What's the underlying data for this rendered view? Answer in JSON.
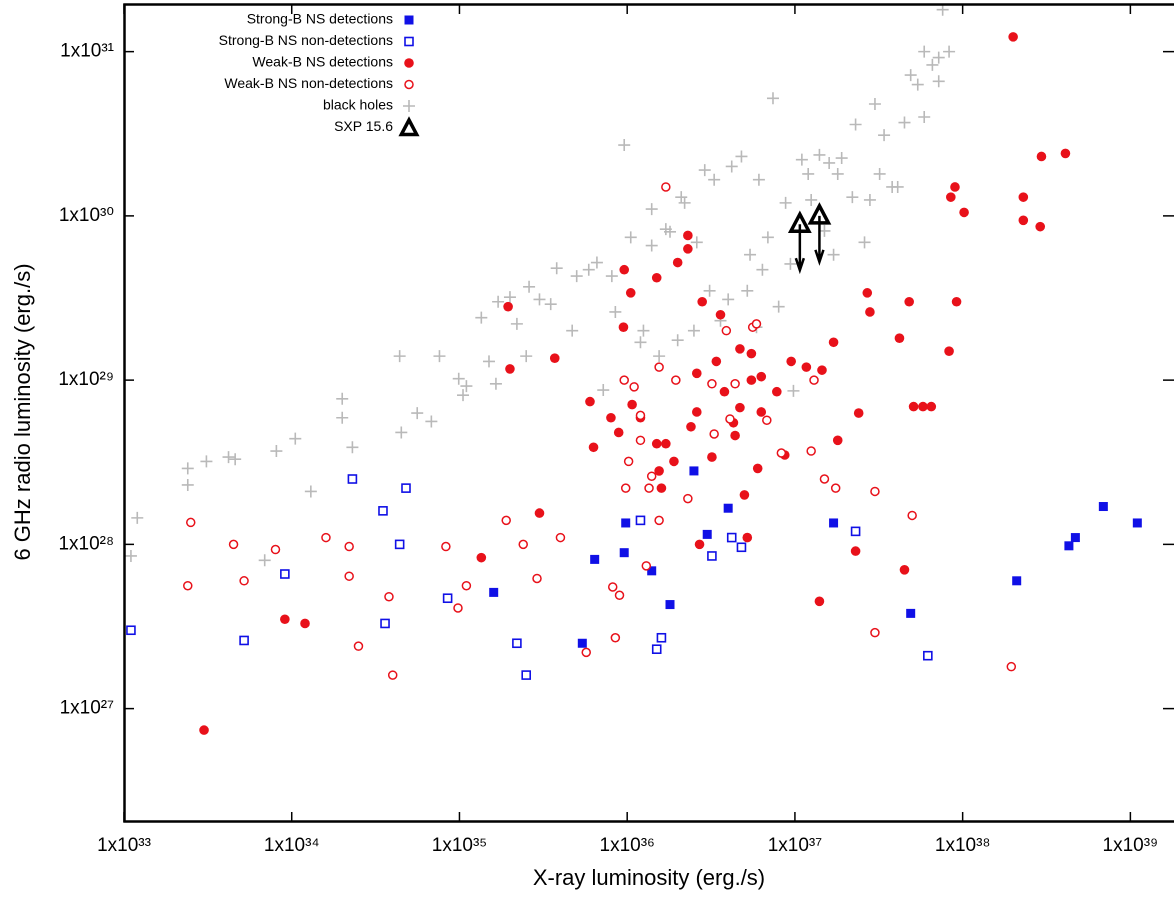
{
  "chart_data": {
    "type": "scatter",
    "x_label": "X-ray luminosity (erg./s)",
    "y_label": "6 GHz radio luminosity (erg./s)",
    "log_x": true,
    "log_y": true,
    "grid": false,
    "legend": "upper left",
    "xlim": [
      1e+33,
      1.82e+39
    ],
    "ylim": [
      2.04e+26,
      1.95e+31
    ],
    "xticks": [
      {
        "value": 1e+33,
        "label": "1x10³³"
      },
      {
        "value": 1e+34,
        "label": "1x10³⁴"
      },
      {
        "value": 1e+35,
        "label": "1x10³⁵"
      },
      {
        "value": 1e+36,
        "label": "1x10³⁶"
      },
      {
        "value": 1e+37,
        "label": "1x10³⁷"
      },
      {
        "value": 1e+38,
        "label": "1x10³⁸"
      },
      {
        "value": 1e+39,
        "label": "1x10³⁹"
      }
    ],
    "yticks": [
      {
        "value": 1e+27,
        "label": "1x10²⁷"
      },
      {
        "value": 1e+28,
        "label": "1x10²⁸"
      },
      {
        "value": 1e+29,
        "label": "1x10²⁹"
      },
      {
        "value": 1e+30,
        "label": "1x10³⁰"
      },
      {
        "value": 1e+31,
        "label": "1x10³¹"
      }
    ],
    "series": [
      {
        "name": "Strong-B NS detections",
        "color": "#1010e6",
        "marker": "square-filled",
        "x": [
          1.6e+35,
          5.4e+35,
          6.4e+35,
          9.6e+35,
          9.8e+35,
          1.4e+36,
          1.8e+36,
          2.5e+36,
          3e+36,
          4e+36,
          1.7e+37,
          4.9e+37,
          2.1e+38,
          4.3e+38,
          4.7e+38,
          6.9e+38,
          1.1e+39
        ],
        "y": [
          5.1e+27,
          2.5e+27,
          8.1e+27,
          8.9e+27,
          1.35e+28,
          6.9e+27,
          4.3e+27,
          2.8e+28,
          1.15e+28,
          1.66e+28,
          1.35e+28,
          3.8e+27,
          6e+27,
          9.8e+27,
          1.1e+28,
          1.7e+28,
          1.35e+28
        ]
      },
      {
        "name": "Strong-B NS non-detections",
        "color": "#1010e6",
        "marker": "square-open",
        "x": [
          1.1e+33,
          5.2e+33,
          9.1e+33,
          2.3e+34,
          3.5e+34,
          3.6e+34,
          4.4e+34,
          4.8e+34,
          8.5e+34,
          2.2e+35,
          2.5e+35,
          1.2e+36,
          1.6e+36,
          1.5e+36,
          3.2e+36,
          4.2e+36,
          4.8e+36,
          2.3e+37,
          6.2e+37
        ],
        "y": [
          3e+27,
          2.6e+27,
          6.6e+27,
          2.5e+28,
          1.6e+28,
          3.3e+27,
          1e+28,
          2.2e+28,
          4.7e+27,
          2.5e+27,
          1.6e+27,
          1.4e+28,
          2.7e+27,
          2.3e+27,
          8.5e+27,
          1.1e+28,
          9.6e+27,
          1.2e+28,
          2.1e+27
        ]
      },
      {
        "name": "Weak-B NS detections",
        "color": "#e8111a",
        "marker": "circle-filled",
        "x": [
          3e+33,
          9.1e+33,
          1.2e+34,
          1.35e+35,
          1.95e+35,
          2e+35,
          3e+35,
          3.7e+35,
          6e+35,
          6.3e+35,
          8e+35,
          8.9e+35,
          9.5e+35,
          9.6e+35,
          1.05e+36,
          1.07e+36,
          1.2e+36,
          1.5e+36,
          1.5e+36,
          1.55e+36,
          1.6e+36,
          1.7e+36,
          1.9e+36,
          2e+36,
          2.3e+36,
          2.3e+36,
          2.4e+36,
          2.6e+36,
          2.6e+36,
          2.8e+36,
          2.7e+36,
          3.2e+36,
          3.4e+36,
          3.6e+36,
          3.8e+36,
          4.3e+36,
          4.4e+36,
          4.7e+36,
          4.7e+36,
          5e+36,
          5.5e+36,
          5.5e+36,
          6e+36,
          6.3e+36,
          6.3e+36,
          7.8e+36,
          8.7e+36,
          9.5e+36,
          1.17e+37,
          1.45e+37,
          1.4e+37,
          1.8e+37,
          1.7e+37,
          2.3e+37,
          2.4e+37,
          2.7e+37,
          2.8e+37,
          4.2e+37,
          4.5e+37,
          4.8e+37,
          5.1e+37,
          5.8e+37,
          6.5e+37,
          8.3e+37,
          8.5e+37,
          9e+37,
          9.2e+37,
          1.02e+38,
          2e+38,
          2.3e+38,
          2.3e+38,
          2.9e+38,
          2.95e+38,
          4.1e+38,
          5.2e+36
        ],
        "y": [
          7.4e+26,
          3.5e+27,
          3.3e+27,
          8.3e+27,
          2.8e+29,
          1.17e+29,
          1.55e+28,
          1.36e+29,
          7.4e+28,
          3.9e+28,
          5.9e+28,
          4.8e+28,
          2.1e+29,
          4.7e+29,
          3.4e+29,
          7.1e+28,
          5.9e+28,
          4.2e+29,
          4.1e+28,
          2.8e+28,
          2.2e+28,
          4.1e+28,
          3.2e+28,
          5.2e+29,
          7.6e+29,
          6.3e+29,
          5.2e+28,
          1.1e+29,
          6.4e+28,
          3e+29,
          1e+28,
          3.4e+28,
          1.3e+29,
          2.5e+29,
          8.5e+28,
          5.5e+28,
          4.6e+28,
          6.8e+28,
          1.55e+29,
          2e+28,
          1e+29,
          1.45e+29,
          2.9e+28,
          1.05e+29,
          6.4e+28,
          8.5e+28,
          3.5e+28,
          1.3e+29,
          1.2e+29,
          1.15e+29,
          4.5e+27,
          4.3e+28,
          1.7e+29,
          9.1e+27,
          6.3e+28,
          3.4e+29,
          2.6e+29,
          1.8e+29,
          7e+27,
          3e+29,
          6.9e+28,
          6.9e+28,
          6.9e+28,
          1.5e+29,
          1.3e+30,
          1.5e+30,
          3e+29,
          1.05e+30,
          1.23e+31,
          1.3e+30,
          9.4e+29,
          8.6e+29,
          2.3e+30,
          2.4e+30,
          1.1e+28
        ]
      },
      {
        "name": "Weak-B NS non-detections",
        "color": "#e8111a",
        "marker": "circle-open",
        "x": [
          2.5e+33,
          2.4e+33,
          4.5e+33,
          5.2e+33,
          8e+33,
          1.6e+34,
          2.2e+34,
          2.2e+34,
          2.5e+34,
          3.8e+34,
          4e+34,
          8.3e+34,
          9.8e+34,
          1.1e+35,
          1.9e+35,
          2.4e+35,
          2.9e+35,
          4e+35,
          5.7e+35,
          8.2e+35,
          8.5e+35,
          9e+35,
          9.6e+35,
          9.8e+35,
          1.02e+36,
          1.1e+36,
          1.2e+36,
          1.2e+36,
          1.3e+36,
          1.35e+36,
          1.4e+36,
          1.55e+36,
          1.55e+36,
          1.7e+36,
          1.95e+36,
          2.3e+36,
          3.2e+36,
          3.3e+36,
          3.9e+36,
          4.1e+36,
          4.4e+36,
          5.6e+36,
          5.9e+36,
          6.8e+36,
          8.3e+36,
          1.25e+37,
          1.3e+37,
          1.5e+37,
          1.75e+37,
          3e+37,
          3e+37,
          5e+37,
          1.95e+38
        ],
        "y": [
          1.36e+28,
          5.6e+27,
          1e+28,
          6e+27,
          9.3e+27,
          1.1e+28,
          9.7e+27,
          6.4e+27,
          2.4e+27,
          4.8e+27,
          1.6e+27,
          9.7e+27,
          4.1e+27,
          5.6e+27,
          1.4e+28,
          1e+28,
          6.2e+27,
          1.1e+28,
          2.2e+27,
          5.5e+27,
          2.7e+27,
          4.9e+27,
          1e+29,
          2.2e+28,
          3.2e+28,
          9.1e+28,
          6.1e+28,
          4.3e+28,
          7.4e+27,
          2.2e+28,
          2.6e+28,
          1.2e+29,
          1.4e+28,
          1.5e+30,
          1e+29,
          1.9e+28,
          9.5e+28,
          4.7e+28,
          2e+29,
          5.8e+28,
          9.5e+28,
          2.1e+29,
          2.2e+29,
          5.7e+28,
          3.6e+28,
          3.7e+28,
          1e+29,
          2.5e+28,
          2.2e+28,
          2.1e+28,
          2.9e+27,
          1.5e+28,
          1.8e+27
        ]
      },
      {
        "name": "black holes",
        "color": "#b9b9b9",
        "marker": "plus",
        "x": [
          1.1e+33,
          1.2e+33,
          2.4e+33,
          2.4e+33,
          3.1e+33,
          4.2e+33,
          4.6e+33,
          6.9e+33,
          8.1e+33,
          1.05e+34,
          1.3e+34,
          2e+34,
          2e+34,
          2.3e+34,
          4.4e+34,
          4.5e+34,
          5.6e+34,
          6.8e+34,
          7.6e+34,
          9.9e+34,
          1.05e+35,
          1.1e+35,
          1.35e+35,
          1.5e+35,
          1.65e+35,
          1.7e+35,
          2e+35,
          2.2e+35,
          2.5e+35,
          2.6e+35,
          3e+35,
          3.5e+35,
          3.8e+35,
          4.7e+35,
          5e+35,
          5.9e+35,
          6.6e+35,
          7.2e+35,
          8.1e+35,
          8.5e+35,
          9.6e+35,
          1.05e+36,
          1.2e+36,
          1.25e+36,
          1.4e+36,
          1.4e+36,
          1.55e+36,
          1.7e+36,
          1.8e+36,
          2e+36,
          2.1e+36,
          2.2e+36,
          2.5e+36,
          2.6e+36,
          2.9e+36,
          3.1e+36,
          3.3e+36,
          3.6e+36,
          4e+36,
          4.2e+36,
          4.8e+36,
          5.2e+36,
          5.9e+36,
          6.1e+36,
          6.4e+36,
          6.9e+36,
          7.4e+36,
          8e+36,
          8.8e+36,
          9.4e+36,
          9.8e+36,
          1.1e+37,
          1.2e+37,
          1.25e+37,
          1.4e+37,
          1.5e+37,
          1.6e+37,
          1.9e+37,
          2.2e+37,
          2.3e+37,
          2.6e+37,
          2.8e+37,
          3e+37,
          3.2e+37,
          3.4e+37,
          3.8e+37,
          4.1e+37,
          4.5e+37,
          4.9e+37,
          5.4e+37,
          5.9e+37,
          6.6e+37,
          7.2e+37,
          7.6e+37,
          8.3e+37,
          5.9e+37,
          7.2e+37,
          1.8e+37,
          1.7e+37,
          5.4e+36
        ],
        "y": [
          8.5e+27,
          1.45e+28,
          2.3e+28,
          2.9e+28,
          3.2e+28,
          3.4e+28,
          3.3e+28,
          8e+27,
          3.7e+28,
          4.4e+28,
          2.1e+28,
          7.7e+28,
          5.9e+28,
          3.9e+28,
          1.4e+29,
          4.8e+28,
          6.3e+28,
          5.6e+28,
          1.4e+29,
          1.02e+29,
          8.1e+28,
          9.2e+28,
          2.4e+29,
          1.3e+29,
          9.5e+28,
          3e+29,
          3.2e+29,
          2.2e+29,
          1.4e+29,
          3.7e+29,
          3.1e+29,
          2.9e+29,
          4.8e+29,
          2e+29,
          4.3e+29,
          4.7e+29,
          5.2e+29,
          8.7e+28,
          4.3e+29,
          2.6e+29,
          2.7e+30,
          7.4e+29,
          1.7e+29,
          2e+29,
          1.1e+30,
          6.6e+29,
          1.4e+29,
          8.3e+29,
          8e+29,
          1.75e+29,
          1.3e+30,
          1.2e+30,
          2e+29,
          6.9e+29,
          1.9e+30,
          3.5e+29,
          1.66e+30,
          2.3e+29,
          3.1e+29,
          2e+30,
          2.3e+30,
          3.5e+29,
          2.1e+29,
          1.66e+30,
          4.7e+29,
          7.4e+29,
          5.2e+30,
          2.8e+29,
          1.2e+30,
          5.1e+29,
          8.6e+28,
          2.2e+30,
          1.8e+30,
          1.25e+30,
          2.35e+30,
          8.1e+29,
          2.1e+30,
          2.25e+30,
          1.3e+30,
          3.6e+30,
          6.9e+29,
          1.25e+30,
          4.8e+30,
          1.8e+30,
          3.1e+30,
          1.5e+30,
          1.5e+30,
          3.7e+30,
          7.2e+30,
          6.3e+30,
          1e+31,
          8.3e+30,
          9.2e+30,
          1.8e+31,
          1e+31,
          4e+30,
          6.6e+30,
          1.8e+30,
          5.8e+29,
          5.8e+29
        ]
      },
      {
        "name": "SXP 15.6",
        "color": "#000000",
        "marker": "triangle-open",
        "upper_limit": true,
        "x": [
          1.07e+37,
          1.4e+37
        ],
        "y": [
          8.9e+29,
          1e+30
        ]
      }
    ]
  }
}
